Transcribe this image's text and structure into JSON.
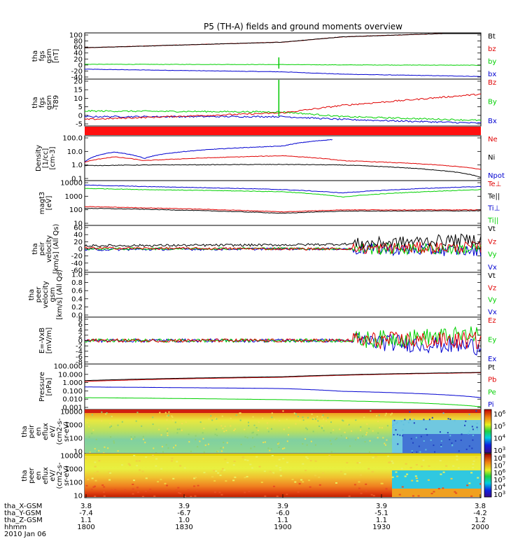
{
  "title": "P5 (TH-A) fields and ground moments overview",
  "x_axis": {
    "rows": [
      {
        "label": "tha_X-GSM",
        "values": [
          "3.8",
          "3.9",
          "3.9",
          "3.9",
          "3.8"
        ]
      },
      {
        "label": "tha_Y-GSM",
        "values": [
          "-7.4",
          "-6.7",
          "-6.0",
          "-5.1",
          "-4.2"
        ]
      },
      {
        "label": "tha_Z-GSM",
        "values": [
          "1.1",
          "1.0",
          "1.1",
          "1.1",
          "1.2"
        ]
      },
      {
        "label": "hhmm",
        "values": [
          "1800",
          "1830",
          "1900",
          "1930",
          "2000"
        ]
      }
    ],
    "date": "2010 Jan 06"
  },
  "colors": {
    "black": "#000000",
    "red": "#e00000",
    "green": "#00d000",
    "blue": "#0000d0",
    "spike": "#00c800"
  },
  "colorbar": {
    "p1_ticks": [
      "10^6",
      "10^5",
      "10^4",
      "10^3"
    ],
    "p2_ticks": [
      "10^8",
      "10^7",
      "10^6",
      "10^5",
      "10^4",
      "10^3"
    ]
  },
  "panels": [
    {
      "id": "fgs-gsm",
      "ylabel_lines": [
        "tha",
        "fgs",
        "gsm",
        "[nT]"
      ],
      "ticks": [
        "100",
        "80",
        "60",
        "40",
        "20",
        "0",
        "-20",
        "-40"
      ],
      "legend": [
        {
          "text": "Bt",
          "color": "#000000"
        },
        {
          "text": "bz",
          "color": "#e00000"
        },
        {
          "text": "by",
          "color": "#00d000"
        },
        {
          "text": "bx",
          "color": "#0000d0"
        }
      ]
    },
    {
      "id": "fgs-t89",
      "ylabel_lines": [
        "tha",
        "fgs",
        "gsm",
        "-T89"
      ],
      "ticks": [
        "20",
        "15",
        "10",
        "5",
        "0",
        "-5"
      ],
      "legend": [
        {
          "text": "Bz",
          "color": "#e00000"
        },
        {
          "text": "By",
          "color": "#00d000"
        },
        {
          "text": "Bx",
          "color": "#0000d0"
        }
      ]
    },
    {
      "id": "density",
      "ylabel_lines": [
        "Density",
        "[1/cc]",
        "[cm^-3]"
      ],
      "ticks": [
        "100.0",
        "10.0",
        "1.0",
        "0.1"
      ],
      "legend": [
        {
          "text": "Ne",
          "color": "#e00000"
        },
        {
          "text": "Ni",
          "color": "#000000"
        },
        {
          "text": "Npot",
          "color": "#0000d0"
        }
      ]
    },
    {
      "id": "temperature",
      "ylabel_lines": [
        "magt3",
        "[eV]"
      ],
      "ticks": [
        "10000",
        "1000",
        "100",
        "10"
      ],
      "legend": [
        {
          "text": "Te⊥",
          "color": "#e00000"
        },
        {
          "text": "Te||",
          "color": "#000000"
        },
        {
          "text": "Ti⊥",
          "color": "#0000d0"
        },
        {
          "text": "Ti||",
          "color": "#00d000"
        }
      ]
    },
    {
      "id": "peir-velocity",
      "ylabel_lines": [
        "tha",
        "peir",
        "velocity",
        "[km/s] (All Qs)"
      ],
      "ticks": [
        "60",
        "40",
        "20",
        "0",
        "-20",
        "-40",
        "-60"
      ],
      "legend": [
        {
          "text": "Vt",
          "color": "#000000"
        },
        {
          "text": "Vz",
          "color": "#e00000"
        },
        {
          "text": "Vy",
          "color": "#00d000"
        },
        {
          "text": "Vx",
          "color": "#0000d0"
        }
      ]
    },
    {
      "id": "peer-velocity",
      "ylabel_lines": [
        "tha",
        "peer",
        "velocity",
        "gsm",
        "[km/s] (All Qs)"
      ],
      "ticks": [
        "1.0",
        "0.8",
        "0.6",
        "0.4",
        "0.2",
        "0.0"
      ],
      "legend": [
        {
          "text": "Vt",
          "color": "#000000"
        },
        {
          "text": "Vz",
          "color": "#e00000"
        },
        {
          "text": "Vy",
          "color": "#00d000"
        },
        {
          "text": "Vx",
          "color": "#0000d0"
        }
      ]
    },
    {
      "id": "efield",
      "ylabel_lines": [
        "E=-VxB",
        "[mV/m]"
      ],
      "ticks": [
        "8",
        "6",
        "4",
        "2",
        "0",
        "-2",
        "-4",
        "-6",
        "-8"
      ],
      "legend": [
        {
          "text": "Ez",
          "color": "#e00000"
        },
        {
          "text": "Ey",
          "color": "#00d000"
        },
        {
          "text": "Ex",
          "color": "#0000d0"
        }
      ]
    },
    {
      "id": "pressure",
      "ylabel_lines": [
        "Pressure",
        "[nPa]"
      ],
      "ticks": [
        "100.000",
        "10.000",
        "1.000",
        "0.100",
        "0.010",
        "0.001"
      ],
      "legend": [
        {
          "text": "Pt",
          "color": "#000000"
        },
        {
          "text": "Pb",
          "color": "#e00000"
        },
        {
          "text": "Pe",
          "color": "#00d000"
        },
        {
          "text": "Pi",
          "color": "#0000d0"
        }
      ]
    },
    {
      "id": "peir-eflux",
      "ylabel_lines": [
        "tha",
        "peir",
        "en",
        "eflux",
        "eV/",
        "(cm^2-s-",
        "sr-eV)"
      ],
      "ticks": [
        "10000",
        "1000",
        "100",
        "10"
      ],
      "legend": []
    },
    {
      "id": "peer-eflux",
      "ylabel_lines": [
        "tha",
        "peer",
        "en",
        "eflux",
        "eV/",
        "(cm^2-s-",
        "sr-eV)"
      ],
      "ticks": [
        "10000",
        "1000",
        "100",
        "10"
      ],
      "legend": []
    }
  ],
  "chart_data": {
    "type": "line",
    "title": "P5 (TH-A) fields and ground moments overview",
    "x": {
      "label": "hhmm",
      "categories": [
        "1800",
        "1830",
        "1900",
        "1930",
        "2000"
      ],
      "date": "2010 Jan 06"
    },
    "panels": [
      {
        "name": "fgs gsm [nT]",
        "ylim": [
          -40,
          100
        ],
        "series": [
          {
            "name": "Bt",
            "x": [
              1800,
              1900,
              1930,
              2000
            ],
            "y": [
              55,
              72,
              88,
              102
            ]
          },
          {
            "name": "bz",
            "x": [
              1800,
              1900,
              1930,
              2000
            ],
            "y": [
              55,
              72,
              88,
              102
            ]
          },
          {
            "name": "by",
            "x": [
              1800,
              1900,
              1930,
              2000
            ],
            "y": [
              5,
              4,
              3,
              2
            ]
          },
          {
            "name": "bx",
            "x": [
              1800,
              1900,
              1930,
              2000
            ],
            "y": [
              -10,
              -18,
              -25,
              -32
            ]
          }
        ]
      },
      {
        "name": "fgs gsm -T89",
        "ylim": [
          -5,
          20
        ],
        "series": [
          {
            "name": "Bz",
            "x": [
              1800,
              1900,
              1930,
              2000
            ],
            "y": [
              -1.5,
              2,
              6,
              12
            ]
          },
          {
            "name": "By",
            "x": [
              1800,
              1900,
              1930,
              2000
            ],
            "y": [
              3,
              2.5,
              0,
              -2
            ]
          },
          {
            "name": "Bx",
            "x": [
              1800,
              1900,
              1930,
              2000
            ],
            "y": [
              0,
              0,
              -1.5,
              -3.5
            ]
          }
        ]
      },
      {
        "name": "Density [cm^-3]",
        "scale": "log",
        "ylim": [
          0.05,
          200
        ],
        "series": [
          {
            "name": "Ne",
            "x": [
              1800,
              1815,
              1830,
              1900,
              1930,
              2000
            ],
            "y": [
              1.5,
              4,
              2,
              5,
              2,
              0.4
            ]
          },
          {
            "name": "Ni",
            "x": [
              1800,
              1830,
              1900,
              1930,
              2000
            ],
            "y": [
              0.8,
              0.9,
              1.0,
              0.9,
              0.09
            ]
          },
          {
            "name": "Npot",
            "x": [
              1800,
              1815,
              1830,
              1900,
              1925
            ],
            "y": [
              1.5,
              10,
              3,
              30,
              100
            ]
          }
        ]
      },
      {
        "name": "magt3 [eV]",
        "scale": "log",
        "ylim": [
          10,
          10000
        ],
        "series": [
          {
            "name": "Te⊥",
            "x": [
              1800,
              1830,
              1900,
              1930,
              2000
            ],
            "y": [
              180,
              150,
              80,
              110,
              110
            ]
          },
          {
            "name": "Te||",
            "x": [
              1800,
              1830,
              1900,
              1930,
              2000
            ],
            "y": [
              140,
              120,
              65,
              90,
              95
            ]
          },
          {
            "name": "Ti⊥",
            "x": [
              1800,
              1830,
              1900,
              1930,
              2000
            ],
            "y": [
              5000,
              4000,
              2500,
              1500,
              4000
            ]
          },
          {
            "name": "Ti||",
            "x": [
              1800,
              1830,
              1900,
              1930,
              2000
            ],
            "y": [
              3000,
              2500,
              1800,
              800,
              2500
            ]
          }
        ]
      },
      {
        "name": "peir velocity [km/s]",
        "ylim": [
          -60,
          60
        ],
        "series": [
          {
            "name": "Vt",
            "x": [
              1800,
              1900,
              1930,
              2000
            ],
            "y": [
              8,
              10,
              12,
              25
            ]
          },
          {
            "name": "Vz",
            "x": [
              1800,
              1900,
              1930,
              2000
            ],
            "y": [
              2,
              0,
              0,
              5
            ]
          },
          {
            "name": "Vy",
            "x": [
              1800,
              1900,
              1930,
              2000
            ],
            "y": [
              0,
              1,
              0,
              0
            ]
          },
          {
            "name": "Vx",
            "x": [
              1800,
              1900,
              1930,
              2000
            ],
            "y": [
              -2,
              0,
              0,
              -5
            ]
          }
        ]
      },
      {
        "name": "peer velocity gsm [km/s]",
        "ylim": [
          0,
          1
        ],
        "series": []
      },
      {
        "name": "E=-VxB [mV/m]",
        "ylim": [
          -8,
          8
        ],
        "series": [
          {
            "name": "Ez",
            "x": [
              1800,
              1900,
              1930,
              2000
            ],
            "y": [
              0,
              0,
              0,
              0
            ]
          },
          {
            "name": "Ey",
            "x": [
              1800,
              1900,
              1930,
              2000
            ],
            "y": [
              0,
              0,
              0,
              2
            ]
          },
          {
            "name": "Ex",
            "x": [
              1800,
              1900,
              1930,
              2000
            ],
            "y": [
              0,
              0,
              0,
              -2
            ]
          }
        ]
      },
      {
        "name": "Pressure [nPa]",
        "scale": "log",
        "ylim": [
          0.001,
          100
        ],
        "series": [
          {
            "name": "Pt",
            "x": [
              1800,
              1900,
              2000
            ],
            "y": [
              1.5,
              4,
              12
            ]
          },
          {
            "name": "Pb",
            "x": [
              1800,
              1900,
              2000
            ],
            "y": [
              1.2,
              3.5,
              11
            ]
          },
          {
            "name": "Pe",
            "x": [
              1800,
              1900,
              2000
            ],
            "y": [
              0.02,
              0.012,
              0.002
            ]
          },
          {
            "name": "Pi",
            "x": [
              1800,
              1900,
              1930,
              2000
            ],
            "y": [
              0.3,
              0.2,
              0.1,
              0.02
            ]
          }
        ]
      }
    ]
  }
}
